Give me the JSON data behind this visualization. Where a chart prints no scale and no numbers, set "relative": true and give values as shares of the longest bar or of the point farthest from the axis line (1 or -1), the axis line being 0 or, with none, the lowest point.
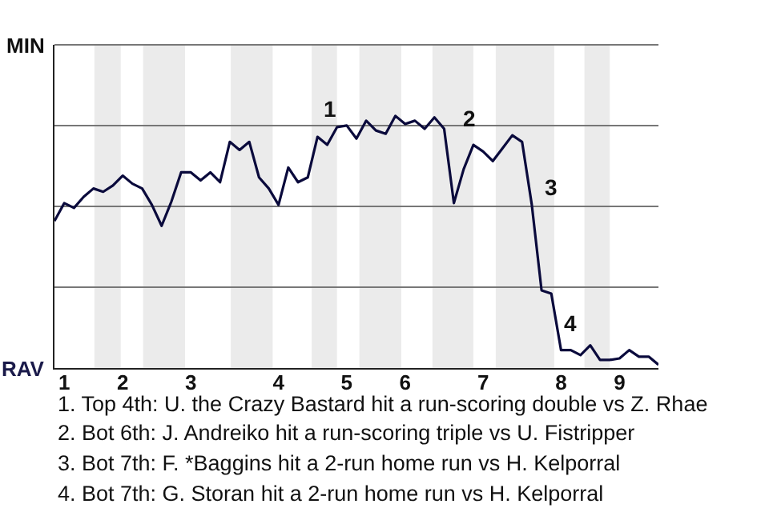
{
  "chart_data": {
    "type": "line",
    "relative": true,
    "categories": [
      null,
      "1",
      null,
      null,
      null,
      null,
      null,
      "2",
      null,
      null,
      null,
      null,
      null,
      null,
      "3",
      null,
      null,
      null,
      null,
      null,
      null,
      null,
      null,
      "4",
      null,
      null,
      null,
      null,
      null,
      null,
      "5",
      null,
      null,
      null,
      null,
      null,
      "6",
      null,
      null,
      null,
      null,
      null,
      null,
      null,
      "7",
      null,
      null,
      null,
      null,
      null,
      null,
      null,
      "8",
      null,
      null,
      null,
      null,
      null,
      "9",
      null,
      null,
      null,
      null
    ],
    "series": [
      {
        "color": "#0a0a3c",
        "values": [
          0.583,
          0.654,
          0.635,
          0.679,
          0.712,
          0.699,
          0.724,
          0.763,
          0.731,
          0.712,
          0.647,
          0.564,
          0.66,
          0.776,
          0.776,
          0.744,
          0.776,
          0.737,
          0.897,
          0.865,
          0.897,
          0.756,
          0.712,
          0.647,
          0.795,
          0.737,
          0.756,
          0.917,
          0.885,
          0.955,
          0.962,
          0.91,
          0.981,
          0.942,
          0.929,
          1,
          0.968,
          0.981,
          0.949,
          0.994,
          0.949,
          0.654,
          0.788,
          0.885,
          0.859,
          0.821,
          0.872,
          0.923,
          0.897,
          0.647,
          0.308,
          0.295,
          0.071,
          0.071,
          0.051,
          0.09,
          0.032,
          0.032,
          0.038,
          0.071,
          0.045,
          0.045,
          0.013
        ]
      }
    ],
    "grid": "y",
    "marker": "none",
    "line_style": "solid",
    "annotations": [
      "MIN",
      "RAV",
      "1",
      "2",
      "3",
      "4",
      "1. Top 4th: U. the Crazy Bastard hit a run-scoring double vs Z. Rhae",
      "2. Bot 6th: J. Andreiko hit a run-scoring triple vs U. Fistripper",
      "3. Bot 7th: F. *Baggins hit a 2-run home run vs H. Kelporral",
      "4. Bot 7th: G. Storan hit a 2-run home run vs H. Kelporral"
    ]
  }
}
